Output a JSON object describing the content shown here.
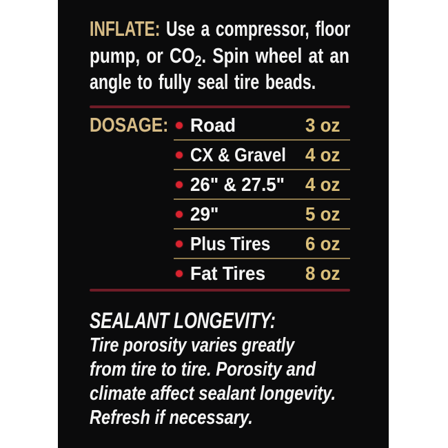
{
  "colors": {
    "panel_bg": "#0b0b0c",
    "heading_gold": "#d6bb85",
    "value_gold": "#dbbf79",
    "text_white": "#f4f4f4",
    "bullet_red": "#d8232f",
    "divider_maroon": "#6e1c27",
    "divider_gold": "#8f7a4c"
  },
  "inflate": {
    "heading": "INFLATE:",
    "line1_rest": "Use a compressor, floor",
    "line2_pre": "pump, or CO",
    "line2_sub": "2",
    "line2_post": ". Spin wheel at an",
    "line3": "angle to fully seal tire beads."
  },
  "dosage": {
    "heading": "DOSAGE:",
    "rows": [
      {
        "label": "Road",
        "value": "3 oz"
      },
      {
        "label": "CX & Gravel",
        "value": "4 oz"
      },
      {
        "label": "26\" & 27.5\"",
        "value": "4 oz"
      },
      {
        "label": "29\"",
        "value": "5 oz"
      },
      {
        "label": "Plus Tires",
        "value": "6 oz"
      },
      {
        "label": "Fat Tires",
        "value": "8 oz"
      }
    ]
  },
  "longevity": {
    "heading": "SEALANT LONGEVITY:",
    "line1": "Tire porosity varies greatly",
    "line2": "from tire to tire. Porosity and",
    "line3": "climate affect sealant longevity.",
    "line4": "Refresh if necessary."
  }
}
